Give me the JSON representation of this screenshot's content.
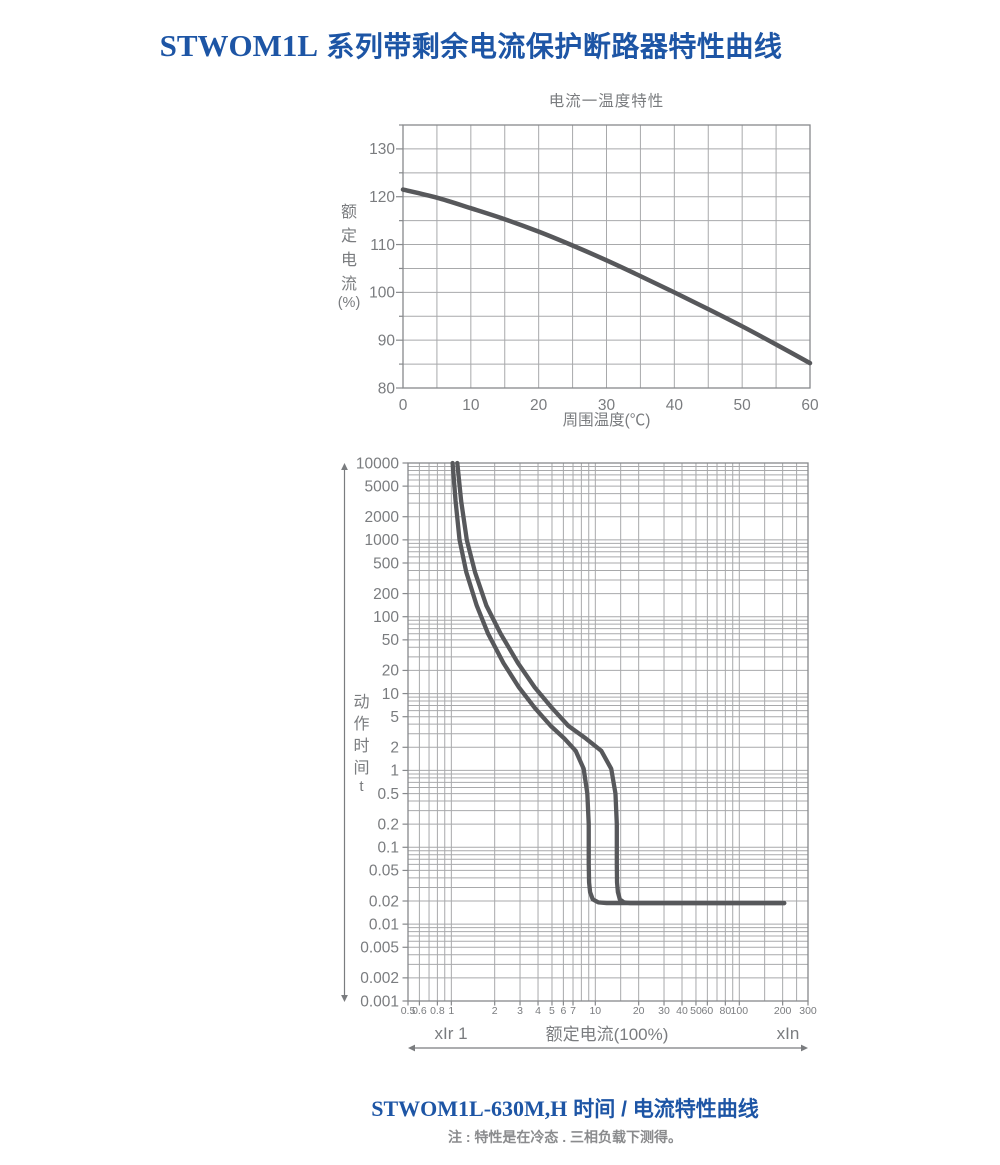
{
  "header": {
    "model": "STWOM1L",
    "title_cn": " 系列带剩余电流保护断路器特性曲线"
  },
  "footer": {
    "model": "STWOM1L-630M,H",
    "title_cn": " 时间 / 电流特性曲线",
    "note": "注 : 特性是在冷态 . 三相负载下测得。"
  },
  "colors": {
    "accent_blue": "#1d55a5",
    "text_gray": "#7a7c7f",
    "grid": "#a8a9ab",
    "border": "#87898c",
    "curve": "#57585b",
    "note_gray": "#8a8b8d"
  },
  "chart_data": [
    {
      "type": "line",
      "title": "电流一温度特性",
      "xlabel": "周围温度(℃)",
      "ylabel_chars": "额定电流",
      "ylabel_suffix": "(%)",
      "xlim": [
        0,
        60
      ],
      "ylim": [
        80,
        135
      ],
      "grid_step": 5,
      "x_ticks": [
        0,
        10,
        20,
        30,
        40,
        50,
        60
      ],
      "y_ticks": [
        80,
        90,
        100,
        110,
        120,
        130
      ],
      "points": [
        [
          0,
          121.5
        ],
        [
          5,
          119.8
        ],
        [
          10,
          117.6
        ],
        [
          15,
          115.3
        ],
        [
          20,
          112.7
        ],
        [
          25,
          109.8
        ],
        [
          30,
          106.7
        ],
        [
          35,
          103.4
        ],
        [
          40,
          100
        ],
        [
          45,
          96.5
        ],
        [
          50,
          92.9
        ],
        [
          55,
          89.1
        ],
        [
          60,
          85.2
        ]
      ]
    },
    {
      "type": "line",
      "scale": "log-log",
      "ylabel_chars": "动作时间",
      "ylabel_suffix": "t",
      "xlim": [
        0.5,
        300
      ],
      "ylim": [
        0.001,
        10000
      ],
      "x_tick_labels": [
        "0.5",
        "0.6",
        "0.8",
        "1",
        "2",
        "3",
        "4",
        "5",
        "6",
        "7",
        "10",
        "20",
        "30",
        "40",
        "50",
        "60",
        "80",
        "100",
        "200",
        "300"
      ],
      "y_tick_labels": [
        "10000",
        "5000",
        "2000",
        "1000",
        "500",
        "200",
        "100",
        "50",
        "20",
        "10",
        "5",
        "2",
        "1",
        "0.5",
        "0.2",
        "0.1",
        "0.05",
        "0.02",
        "0.01",
        "0.005",
        "0.002",
        "0.001"
      ],
      "x_grid_values": [
        0.5,
        0.6,
        0.7,
        0.8,
        0.9,
        1,
        2,
        3,
        4,
        5,
        6,
        7,
        8,
        9,
        10,
        15,
        20,
        30,
        40,
        50,
        60,
        70,
        80,
        90,
        100,
        150,
        200,
        250,
        300
      ],
      "xaxis_annotations": {
        "left": "xIr 1",
        "center": "额定电流(100%)",
        "right": "xIn"
      },
      "series": [
        {
          "name": "M",
          "points": [
            [
              1.02,
              10000
            ],
            [
              1.07,
              3200
            ],
            [
              1.14,
              1000
            ],
            [
              1.27,
              380
            ],
            [
              1.5,
              140
            ],
            [
              1.8,
              60
            ],
            [
              2.3,
              25
            ],
            [
              2.95,
              12
            ],
            [
              3.8,
              6.5
            ],
            [
              4.9,
              3.8
            ],
            [
              6.1,
              2.6
            ],
            [
              7.3,
              1.8
            ],
            [
              8.3,
              1.05
            ],
            [
              8.8,
              0.5
            ],
            [
              9.0,
              0.2
            ],
            [
              9.0,
              0.06
            ],
            [
              9.05,
              0.035
            ],
            [
              9.2,
              0.026
            ],
            [
              9.6,
              0.021
            ],
            [
              10.5,
              0.0192
            ],
            [
              12,
              0.0188
            ],
            [
              205,
              0.0188
            ]
          ]
        },
        {
          "name": "H",
          "points": [
            [
              1.1,
              10000
            ],
            [
              1.17,
              3200
            ],
            [
              1.28,
              1000
            ],
            [
              1.46,
              380
            ],
            [
              1.75,
              140
            ],
            [
              2.2,
              60
            ],
            [
              2.9,
              25
            ],
            [
              3.8,
              12
            ],
            [
              5.0,
              6.5
            ],
            [
              6.5,
              3.8
            ],
            [
              8.6,
              2.6
            ],
            [
              11,
              1.8
            ],
            [
              12.9,
              1.05
            ],
            [
              13.8,
              0.5
            ],
            [
              14.1,
              0.2
            ],
            [
              14.1,
              0.06
            ],
            [
              14.15,
              0.035
            ],
            [
              14.35,
              0.026
            ],
            [
              14.8,
              0.021
            ],
            [
              15.8,
              0.0192
            ],
            [
              17.5,
              0.0188
            ],
            [
              205,
              0.0188
            ]
          ]
        }
      ]
    }
  ]
}
